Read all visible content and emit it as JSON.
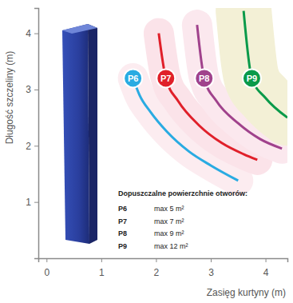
{
  "chart_data": {
    "type": "line",
    "x_label": "Zasięg kurtyny (m)",
    "y_label": "Długość szczeliny (m)",
    "xlim": [
      -0.15,
      4.4
    ],
    "ylim": [
      0,
      4.45
    ],
    "xticks": [
      0,
      1,
      2,
      3,
      4
    ],
    "yticks": [
      1,
      2,
      3,
      4
    ],
    "grid": false,
    "series": [
      {
        "name": "P6",
        "color": "#29abe2",
        "x": [
          1.58,
          1.7,
          1.9,
          2.2,
          2.6,
          3.0,
          3.5
        ],
        "values": [
          3.2,
          2.9,
          2.6,
          2.25,
          1.9,
          1.65,
          1.38
        ]
      },
      {
        "name": "P7",
        "color": "#e0202a",
        "x": [
          2.05,
          2.18,
          2.4,
          2.8,
          3.2,
          3.6,
          3.85
        ],
        "values": [
          4.0,
          3.2,
          2.8,
          2.35,
          2.05,
          1.85,
          1.75
        ]
      },
      {
        "name": "P8",
        "color": "#a0428c",
        "x": [
          2.75,
          2.88,
          3.1,
          3.5,
          3.9,
          4.3
        ],
        "values": [
          4.15,
          3.2,
          2.8,
          2.4,
          2.12,
          1.95
        ]
      },
      {
        "name": "P9",
        "color": "#0a9a4a",
        "x": [
          3.6,
          3.75,
          4.0,
          4.4
        ],
        "values": [
          4.4,
          3.2,
          2.85,
          2.5
        ]
      }
    ],
    "annotation": {
      "title": "Dopuszczalne powierzchnie otworów:",
      "rows": [
        {
          "series": "P6",
          "text": "max 5 m²"
        },
        {
          "series": "P7",
          "text": "max 7 m²"
        },
        {
          "series": "P8",
          "text": "max 9 m²"
        },
        {
          "series": "P9",
          "text": "max 12 m²"
        }
      ]
    }
  }
}
